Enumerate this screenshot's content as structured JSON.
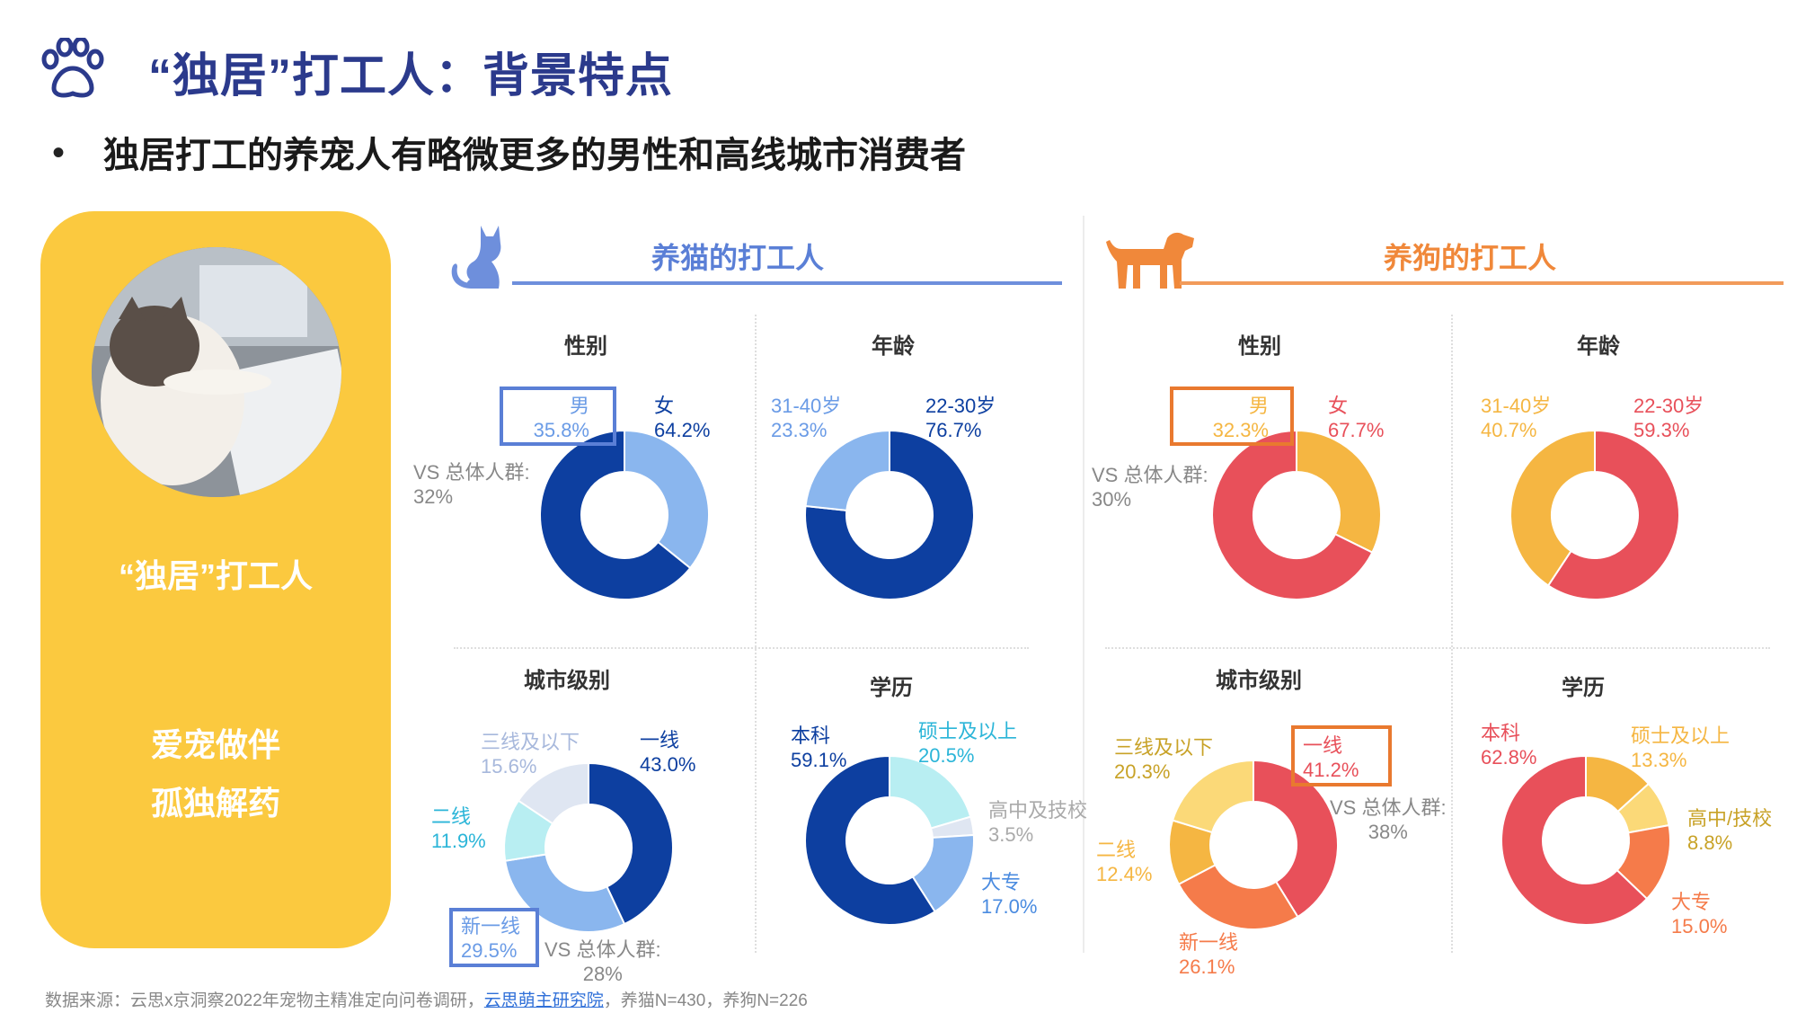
{
  "page": {
    "title": "“独居”打工人：背景特点",
    "subtitle": "独居打工的养宠人有略微更多的男性和高线城市消费者",
    "bullet": "•"
  },
  "card": {
    "label": "“独居”打工人",
    "slogan_line1": "爱宠做伴",
    "slogan_line2": "孤独解药",
    "yellow": "#fbc93f"
  },
  "sections": {
    "cat_title": "养猫的打工人",
    "dog_title": "养狗的打工人"
  },
  "labels": {
    "gender": "性别",
    "age": "年龄",
    "city": "城市级别",
    "edu": "学历"
  },
  "vs": {
    "cat_gender_line1": "VS 总体人群:",
    "cat_gender_line2": "32%",
    "cat_city_line1": "VS 总体人群:",
    "cat_city_line2": "28%",
    "dog_gender_line1": "VS 总体人群:",
    "dog_gender_line2": "30%",
    "dog_city_line1": "VS 总体人群:",
    "dog_city_line2": "38%"
  },
  "footer": {
    "prefix": "数据来源：云思x京洞察2022年宠物主精准定向问卷调研，",
    "link": "云思萌主研究院",
    "suffix": "，养猫N=430，养狗N=226"
  },
  "icons": {
    "paw": "paw-icon",
    "cat": "cat-icon",
    "dog": "dog-icon"
  },
  "chart_data": [
    {
      "id": "cat_gender",
      "type": "pie",
      "title": "性别",
      "subtitle": "养猫的打工人",
      "categories": [
        "男",
        "女"
      ],
      "values": [
        35.8,
        64.2
      ],
      "labels": [
        "35.8%",
        "64.2%"
      ],
      "colors": [
        "#8ab6ee",
        "#0d3fa0"
      ]
    },
    {
      "id": "cat_age",
      "type": "pie",
      "title": "年龄",
      "subtitle": "养猫的打工人",
      "categories": [
        "22-30岁",
        "31-40岁"
      ],
      "values": [
        76.7,
        23.3
      ],
      "labels": [
        "76.7%",
        "23.3%"
      ],
      "colors": [
        "#0d3fa0",
        "#8ab6ee"
      ]
    },
    {
      "id": "cat_city",
      "type": "pie",
      "title": "城市级别",
      "subtitle": "养猫的打工人",
      "categories": [
        "一线",
        "新一线",
        "二线",
        "三线及以下"
      ],
      "values": [
        43.0,
        29.5,
        11.9,
        15.6
      ],
      "labels": [
        "43.0%",
        "29.5%",
        "11.9%",
        "15.6%"
      ],
      "colors": [
        "#0d3fa0",
        "#8ab6ee",
        "#b8eef2",
        "#dfe6f2"
      ]
    },
    {
      "id": "cat_edu",
      "type": "pie",
      "title": "学历",
      "subtitle": "养猫的打工人",
      "categories": [
        "硕士及以上",
        "高中及技校",
        "大专",
        "本科"
      ],
      "values": [
        20.5,
        3.5,
        17.0,
        59.1
      ],
      "labels": [
        "20.5%",
        "3.5%",
        "17.0%",
        "59.1%"
      ],
      "colors": [
        "#b8eef2",
        "#dfe6f2",
        "#8ab6ee",
        "#0d3fa0"
      ]
    },
    {
      "id": "dog_gender",
      "type": "pie",
      "title": "性别",
      "subtitle": "养狗的打工人",
      "categories": [
        "男",
        "女"
      ],
      "values": [
        32.3,
        67.7
      ],
      "labels": [
        "32.3%",
        "67.7%"
      ],
      "colors": [
        "#f5b642",
        "#e8505a"
      ]
    },
    {
      "id": "dog_age",
      "type": "pie",
      "title": "年龄",
      "subtitle": "养狗的打工人",
      "categories": [
        "22-30岁",
        "31-40岁"
      ],
      "values": [
        59.3,
        40.7
      ],
      "labels": [
        "59.3%",
        "40.7%"
      ],
      "colors": [
        "#e8505a",
        "#f5b642"
      ]
    },
    {
      "id": "dog_city",
      "type": "pie",
      "title": "城市级别",
      "subtitle": "养狗的打工人",
      "categories": [
        "一线",
        "新一线",
        "二线",
        "三线及以下"
      ],
      "values": [
        41.2,
        26.1,
        12.4,
        20.3
      ],
      "labels": [
        "41.2%",
        "26.1%",
        "12.4%",
        "20.3%"
      ],
      "colors": [
        "#e8505a",
        "#f57b4a",
        "#f5b642",
        "#fbd978"
      ]
    },
    {
      "id": "dog_edu",
      "type": "pie",
      "title": "学历",
      "subtitle": "养狗的打工人",
      "categories": [
        "硕士及以上",
        "高中/技校",
        "大专",
        "本科"
      ],
      "values": [
        13.3,
        8.8,
        15.0,
        62.8
      ],
      "labels": [
        "13.3%",
        "8.8%",
        "15.0%",
        "62.8%"
      ],
      "colors": [
        "#f5b642",
        "#fbd978",
        "#f57b4a",
        "#e8505a"
      ]
    }
  ]
}
